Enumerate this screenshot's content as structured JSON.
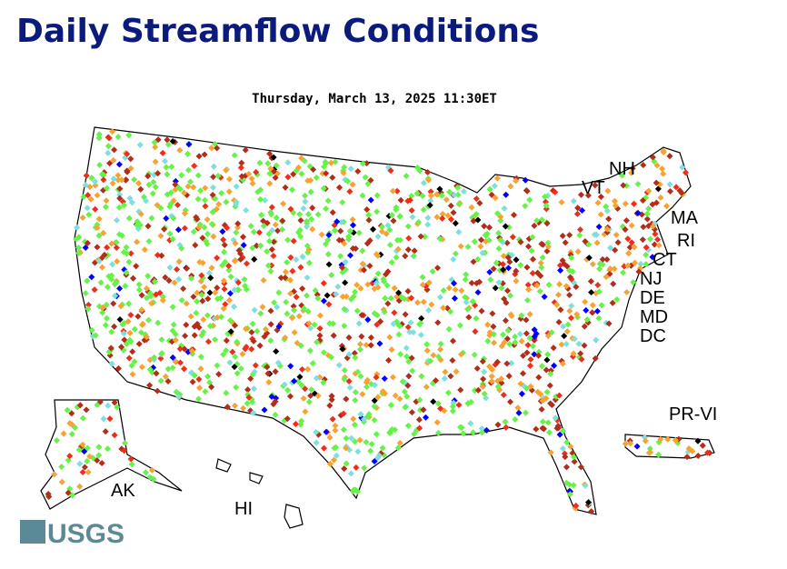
{
  "title": "Daily Streamflow Conditions",
  "timestamp": "Thursday, March 13, 2025 11:30ET",
  "labels": [
    "NH",
    "VT",
    "MA",
    "RI",
    "CT",
    "NJ",
    "DE",
    "MD",
    "DC",
    "PR-VI",
    "AK",
    "HI"
  ],
  "logo": "USGS"
}
